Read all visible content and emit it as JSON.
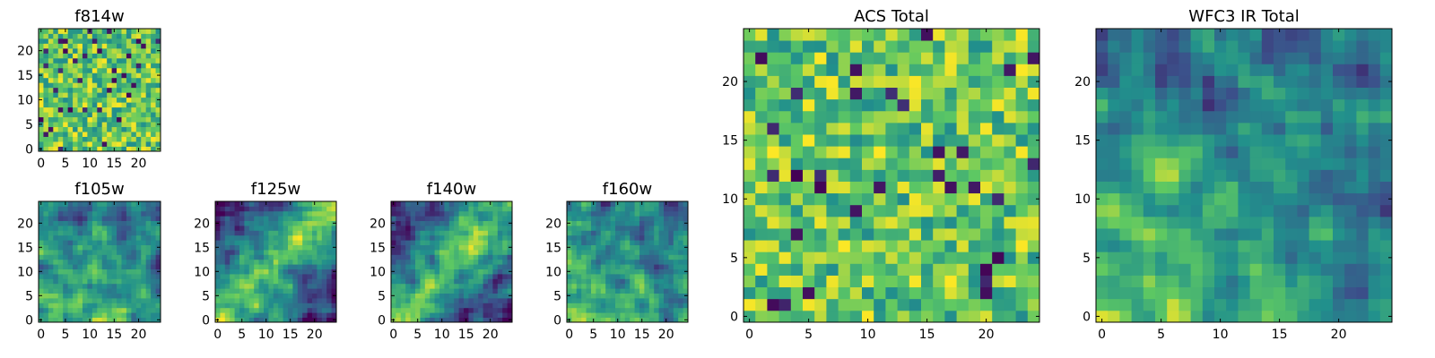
{
  "chart_data": [
    {
      "type": "heatmap",
      "title": "f814w",
      "grid_size": [
        25,
        25
      ],
      "xlim": [
        -0.5,
        24.5
      ],
      "ylim": [
        -0.5,
        24.5
      ],
      "xticks": [
        0,
        5,
        10,
        15,
        20
      ],
      "yticks": [
        0,
        5,
        10,
        15,
        20
      ],
      "colormap": [
        "#440154",
        "#3b528b",
        "#21908c",
        "#5dc863",
        "#fde725"
      ],
      "pattern": "uniform-noise"
    },
    {
      "type": "heatmap",
      "title": "f105w",
      "grid_size": [
        25,
        25
      ],
      "xlim": [
        -0.5,
        24.5
      ],
      "ylim": [
        -0.5,
        24.5
      ],
      "xticks": [
        0,
        5,
        10,
        15,
        20
      ],
      "yticks": [
        0,
        5,
        10,
        15,
        20
      ],
      "colormap": [
        "#440154",
        "#3b528b",
        "#21908c",
        "#5dc863",
        "#fde725"
      ],
      "pattern": "bright-lower-left"
    },
    {
      "type": "heatmap",
      "title": "f125w",
      "grid_size": [
        25,
        25
      ],
      "xlim": [
        -0.5,
        24.5
      ],
      "ylim": [
        -0.5,
        24.5
      ],
      "xticks": [
        0,
        5,
        10,
        15,
        20
      ],
      "yticks": [
        0,
        5,
        10,
        15,
        20
      ],
      "colormap": [
        "#440154",
        "#3b528b",
        "#21908c",
        "#5dc863",
        "#fde725"
      ],
      "pattern": "bright-diagonal"
    },
    {
      "type": "heatmap",
      "title": "f140w",
      "grid_size": [
        25,
        25
      ],
      "xlim": [
        -0.5,
        24.5
      ],
      "ylim": [
        -0.5,
        24.5
      ],
      "xticks": [
        0,
        5,
        10,
        15,
        20
      ],
      "yticks": [
        0,
        5,
        10,
        15,
        20
      ],
      "colormap": [
        "#440154",
        "#3b528b",
        "#21908c",
        "#5dc863",
        "#fde725"
      ],
      "pattern": "bright-diagonal"
    },
    {
      "type": "heatmap",
      "title": "f160w",
      "grid_size": [
        25,
        25
      ],
      "xlim": [
        -0.5,
        24.5
      ],
      "ylim": [
        -0.5,
        24.5
      ],
      "xticks": [
        0,
        5,
        10,
        15,
        20
      ],
      "yticks": [
        0,
        5,
        10,
        15,
        20
      ],
      "colormap": [
        "#440154",
        "#3b528b",
        "#21908c",
        "#5dc863",
        "#fde725"
      ],
      "pattern": "bright-lower-left"
    },
    {
      "type": "heatmap",
      "title": "ACS Total",
      "grid_size": [
        25,
        25
      ],
      "xlim": [
        -0.5,
        24.5
      ],
      "ylim": [
        -0.5,
        24.5
      ],
      "xticks": [
        0,
        5,
        10,
        15,
        20
      ],
      "yticks": [
        0,
        5,
        10,
        15,
        20
      ],
      "colormap": [
        "#440154",
        "#3b528b",
        "#21908c",
        "#5dc863",
        "#fde725"
      ],
      "pattern": "uniform-noise"
    },
    {
      "type": "heatmap",
      "title": "WFC3 IR Total",
      "grid_size": [
        25,
        25
      ],
      "xlim": [
        -0.5,
        24.5
      ],
      "ylim": [
        -0.5,
        24.5
      ],
      "xticks": [
        0,
        5,
        10,
        15,
        20
      ],
      "yticks": [
        0,
        5,
        10,
        15,
        20
      ],
      "colormap": [
        "#440154",
        "#3b528b",
        "#21908c",
        "#5dc863",
        "#fde725"
      ],
      "pattern": "bright-lower-left"
    }
  ]
}
